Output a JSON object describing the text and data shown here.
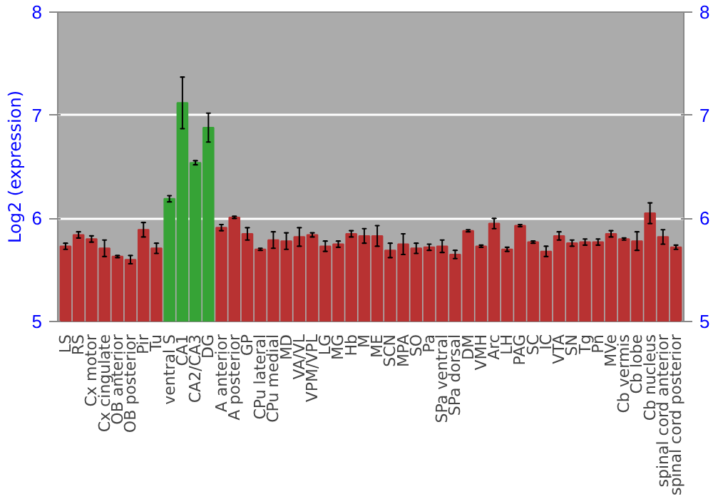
{
  "chart_data": {
    "type": "bar",
    "ylabel": "Log2 (expression)",
    "categories": [
      "LS",
      "RS",
      "Cx motor",
      "Cx cingulate",
      "OB anterior",
      "OB posterior",
      "Pir",
      "Tu",
      "ventral S",
      "CA1",
      "CA2/CA3",
      "DG",
      "A anterior",
      "A posterior",
      "GP",
      "CPu lateral",
      "CPu medial",
      "MD",
      "VA/VL",
      "VPM/VPL",
      "LG",
      "MG",
      "Hb",
      "M",
      "ME",
      "SCN",
      "MPA",
      "SO",
      "Pa",
      "SPa ventral",
      "SPa dorsal",
      "DM",
      "VMH",
      "Arc",
      "LH",
      "PAG",
      "SC",
      "IC",
      "VTA",
      "SN",
      "Tg",
      "Pn",
      "MVe",
      "Cb vermis",
      "Cb lobe",
      "Cb nucleus",
      "spinal cord anterior",
      "spinal cord posterior"
    ],
    "values": [
      5.73,
      5.84,
      5.8,
      5.71,
      5.63,
      5.6,
      5.89,
      5.71,
      6.19,
      7.12,
      6.54,
      6.88,
      5.91,
      6.01,
      5.85,
      5.7,
      5.79,
      5.78,
      5.82,
      5.84,
      5.73,
      5.75,
      5.85,
      5.83,
      5.83,
      5.69,
      5.75,
      5.71,
      5.72,
      5.73,
      5.65,
      5.88,
      5.73,
      5.95,
      5.7,
      5.93,
      5.77,
      5.68,
      5.83,
      5.76,
      5.77,
      5.77,
      5.85,
      5.8,
      5.78,
      6.05,
      5.82,
      5.72
    ],
    "errors": [
      0.03,
      0.03,
      0.03,
      0.08,
      0.01,
      0.04,
      0.07,
      0.05,
      0.03,
      0.25,
      0.02,
      0.14,
      0.03,
      0.01,
      0.06,
      0.01,
      0.08,
      0.08,
      0.09,
      0.02,
      0.05,
      0.03,
      0.03,
      0.07,
      0.1,
      0.07,
      0.1,
      0.05,
      0.03,
      0.06,
      0.04,
      0.01,
      0.01,
      0.05,
      0.02,
      0.01,
      0.01,
      0.05,
      0.04,
      0.03,
      0.03,
      0.03,
      0.03,
      0.01,
      0.09,
      0.1,
      0.07,
      0.02
    ],
    "colors": [
      "#b83232",
      "#b83232",
      "#b83232",
      "#b83232",
      "#b83232",
      "#b83232",
      "#b83232",
      "#b83232",
      "#36a336",
      "#36a336",
      "#36a336",
      "#36a336",
      "#b83232",
      "#b83232",
      "#b83232",
      "#b83232",
      "#b83232",
      "#b83232",
      "#b83232",
      "#b83232",
      "#b83232",
      "#b83232",
      "#b83232",
      "#b83232",
      "#b83232",
      "#b83232",
      "#b83232",
      "#b83232",
      "#b83232",
      "#b83232",
      "#b83232",
      "#b83232",
      "#b83232",
      "#b83232",
      "#b83232",
      "#b83232",
      "#b83232",
      "#b83232",
      "#b83232",
      "#b83232",
      "#b83232",
      "#b83232",
      "#b83232",
      "#b83232",
      "#b83232",
      "#b83232",
      "#b83232",
      "#b83232"
    ],
    "ylim": [
      5,
      8
    ],
    "yticks": [
      5,
      6,
      7,
      8
    ],
    "y2lim": [
      5,
      8
    ],
    "y2ticks": [
      5,
      6,
      7,
      8
    ],
    "grid": "y"
  }
}
